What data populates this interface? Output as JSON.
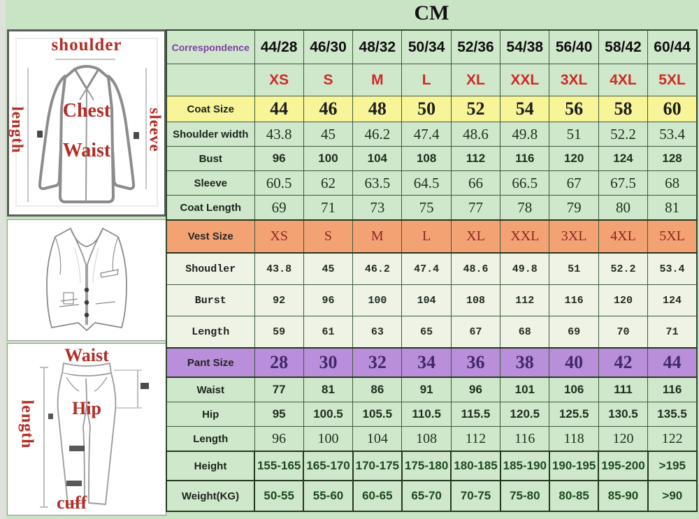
{
  "title": "CM",
  "table": {
    "correspondence_label": "Correspondence",
    "correspondence": [
      "44/28",
      "46/30",
      "48/32",
      "50/34",
      "52/36",
      "54/38",
      "56/40",
      "58/42",
      "60/44"
    ],
    "sizes": [
      "XS",
      "S",
      "M",
      "L",
      "XL",
      "XXL",
      "3XL",
      "4XL",
      "5XL"
    ],
    "coat": {
      "size_label": "Coat Size",
      "sizes": [
        "44",
        "46",
        "48",
        "50",
        "52",
        "54",
        "56",
        "58",
        "60"
      ],
      "shoulder": {
        "label": "Shoulder width",
        "values": [
          "43.8",
          "45",
          "46.2",
          "47.4",
          "48.6",
          "49.8",
          "51",
          "52.2",
          "53.4"
        ]
      },
      "bust": {
        "label": "Bust",
        "values": [
          "96",
          "100",
          "104",
          "108",
          "112",
          "116",
          "120",
          "124",
          "128"
        ]
      },
      "sleeve": {
        "label": "Sleeve",
        "values": [
          "60.5",
          "62",
          "63.5",
          "64.5",
          "66",
          "66.5",
          "67",
          "67.5",
          "68"
        ]
      },
      "length": {
        "label": "Coat Length",
        "values": [
          "69",
          "71",
          "73",
          "75",
          "77",
          "78",
          "79",
          "80",
          "81"
        ]
      }
    },
    "vest": {
      "size_label": "Vest Size",
      "sizes": [
        "XS",
        "S",
        "M",
        "L",
        "XL",
        "XXL",
        "3XL",
        "4XL",
        "5XL"
      ],
      "shoulder": {
        "label": "Shoudler",
        "values": [
          "43.8",
          "45",
          "46.2",
          "47.4",
          "48.6",
          "49.8",
          "51",
          "52.2",
          "53.4"
        ]
      },
      "bust": {
        "label": "Burst",
        "values": [
          "92",
          "96",
          "100",
          "104",
          "108",
          "112",
          "116",
          "120",
          "124"
        ]
      },
      "length": {
        "label": "Length",
        "values": [
          "59",
          "61",
          "63",
          "65",
          "67",
          "68",
          "69",
          "70",
          "71"
        ]
      }
    },
    "pant": {
      "size_label": "Pant Size",
      "sizes": [
        "28",
        "30",
        "32",
        "34",
        "36",
        "38",
        "40",
        "42",
        "44"
      ],
      "waist": {
        "label": "Waist",
        "values": [
          "77",
          "81",
          "86",
          "91",
          "96",
          "101",
          "106",
          "111",
          "116"
        ]
      },
      "hip": {
        "label": "Hip",
        "values": [
          "95",
          "100.5",
          "105.5",
          "110.5",
          "115.5",
          "120.5",
          "125.5",
          "130.5",
          "135.5"
        ]
      },
      "length": {
        "label": "Length",
        "values": [
          "96",
          "100",
          "104",
          "108",
          "112",
          "116",
          "118",
          "120",
          "122"
        ]
      }
    },
    "body": {
      "height": {
        "label": "Height",
        "values": [
          "155-165",
          "165-170",
          "170-175",
          "175-180",
          "180-185",
          "185-190",
          "190-195",
          "195-200",
          ">195"
        ]
      },
      "weight": {
        "label": "Weight(KG)",
        "values": [
          "50-55",
          "55-60",
          "60-65",
          "65-70",
          "70-75",
          "75-80",
          "80-85",
          "85-90",
          ">90"
        ]
      }
    }
  },
  "diagrams": {
    "jacket": {
      "shoulder": "shoulder",
      "length": "length",
      "sleeve": "sleeve",
      "chest": "Chest",
      "waist": "Waist"
    },
    "pants": {
      "waist": "Waist",
      "length": "length",
      "hip": "Hip",
      "cuff": "cuff"
    }
  },
  "colors": {
    "background": "#c9e3c5",
    "cell_green": "#cfe8cb",
    "vest_cell_light": "#eef3e6",
    "coat_row_yellow": "#f8f599",
    "vest_row_orange": "#f3a273",
    "pant_row_purple": "#b98fdb",
    "size_letters_red": "#cf2b24",
    "vest_letters_red": "#8e2620",
    "pant_size_text": "#43276b",
    "correspondence_purple": "#7b3f9e",
    "diagram_label_red": "#b32d26",
    "body_rows_text": "#1d4a20"
  }
}
